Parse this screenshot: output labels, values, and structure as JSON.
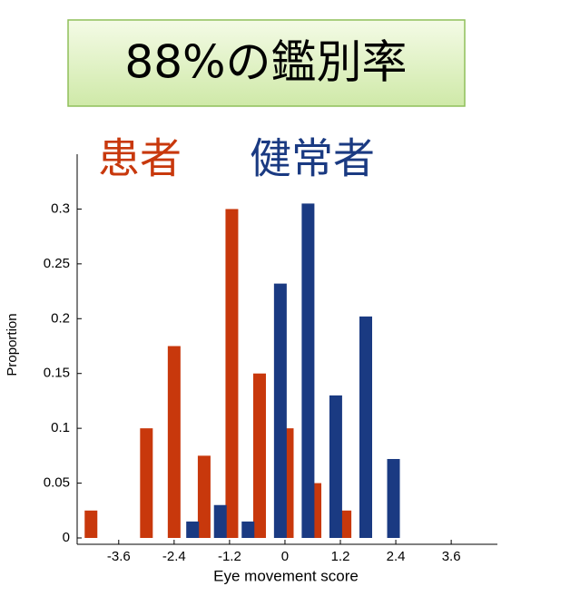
{
  "chart_data": {
    "type": "bar",
    "title": "88%の鑑別率",
    "xlabel": "Eye movement score",
    "ylabel": "Proportion",
    "xlim": [
      -4.5,
      4.6
    ],
    "xticks": [
      -3.6,
      -2.4,
      -1.2,
      0,
      1.2,
      2.4,
      3.6
    ],
    "ylim": [
      0,
      0.35
    ],
    "yticks": [
      0,
      0.05,
      0.1,
      0.15,
      0.2,
      0.25,
      0.3
    ],
    "series": [
      {
        "name": "患者",
        "color": "#c8380c",
        "x": [
          -4.2,
          -3.0,
          -2.4,
          -1.75,
          -1.15,
          -0.55,
          0.05,
          0.65,
          1.3
        ],
        "values": [
          0.025,
          0.1,
          0.175,
          0.075,
          0.3,
          0.15,
          0.1,
          0.05,
          0.025
        ]
      },
      {
        "name": "健常者",
        "color": "#1a3a82",
        "x": [
          -2.0,
          -1.4,
          -0.8,
          -0.1,
          0.5,
          1.1,
          1.75,
          2.35
        ],
        "values": [
          0.015,
          0.03,
          0.015,
          0.232,
          0.305,
          0.13,
          0.202,
          0.072
        ]
      }
    ]
  }
}
